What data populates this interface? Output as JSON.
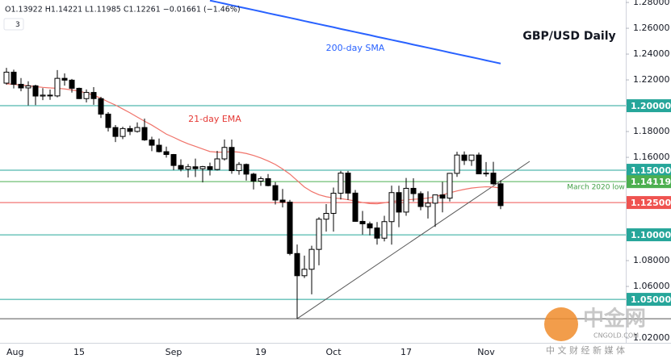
{
  "chart_data": {
    "type": "candlestick",
    "title": "GBP/USD Daily",
    "header": {
      "ohlc": "O1.13922 H1.14221 L1.11985 C1.12261 −0.01661 (−1.46%)",
      "indicator_count": "3"
    },
    "categories": [
      "Aug",
      null,
      null,
      null,
      null,
      null,
      null,
      null,
      null,
      null,
      "15",
      null,
      null,
      null,
      null,
      null,
      null,
      null,
      null,
      null,
      null,
      null,
      null,
      "Sep",
      null,
      null,
      null,
      null,
      null,
      null,
      null,
      null,
      null,
      null,
      null,
      "19",
      null,
      null,
      null,
      null,
      null,
      null,
      null,
      null,
      null,
      "Oct",
      null,
      null,
      null,
      null,
      null,
      null,
      null,
      null,
      null,
      "17",
      null,
      null,
      null,
      null,
      null,
      null,
      null,
      null,
      null,
      null,
      "Nov",
      null,
      null
    ],
    "open": [
      1.2175,
      1.226,
      1.2166,
      1.2138,
      1.2154,
      1.2075,
      1.2082,
      1.2076,
      1.2212,
      1.2198,
      1.2135,
      1.2055,
      1.2103,
      1.2055,
      1.1935,
      1.1831,
      1.1762,
      1.1823,
      1.1801,
      1.1831,
      1.1735,
      1.1694,
      1.1644,
      1.1622,
      1.1537,
      1.1509,
      1.1527,
      1.1512,
      1.1528,
      1.1506,
      1.1588,
      1.1677,
      1.1497,
      1.1545,
      1.147,
      1.1416,
      1.1435,
      1.1381,
      1.1269,
      1.1253,
      1.0855,
      1.0683,
      1.0733,
      1.0887,
      1.1121,
      1.1166,
      1.1322,
      1.1478,
      1.1323,
      1.1104,
      1.1085,
      1.1053,
      1.0974,
      1.1102,
      1.1327,
      1.1176,
      1.136,
      1.1319,
      1.1219,
      1.1245,
      1.1309,
      1.1284,
      1.1476,
      1.1618,
      1.1576,
      1.1618,
      1.1472,
      1.1478,
      1.1395
    ],
    "high": [
      1.2293,
      1.2279,
      1.2214,
      1.2189,
      1.2163,
      1.2136,
      1.2125,
      1.2276,
      1.225,
      1.2207,
      1.214,
      1.2126,
      1.2144,
      1.2069,
      1.195,
      1.185,
      1.1837,
      1.1846,
      1.1871,
      1.19,
      1.176,
      1.1746,
      1.1683,
      1.1626,
      1.1585,
      1.1548,
      1.159,
      1.1534,
      1.1559,
      1.165,
      1.1739,
      1.1738,
      1.1564,
      1.1552,
      1.148,
      1.1452,
      1.1471,
      1.1408,
      1.1355,
      1.1271,
      1.0925,
      1.0839,
      1.0915,
      1.1136,
      1.1238,
      1.1366,
      1.1495,
      1.1495,
      1.1347,
      1.1185,
      1.1102,
      1.1099,
      1.1147,
      1.1381,
      1.138,
      1.144,
      1.1438,
      1.1336,
      1.1336,
      1.1293,
      1.141,
      1.1479,
      1.1643,
      1.1646,
      1.1618,
      1.1637,
      1.1564,
      1.1565,
      1.1422
    ],
    "low": [
      1.2163,
      1.2134,
      1.2112,
      1.2003,
      1.2005,
      1.2043,
      1.2046,
      1.2065,
      1.2156,
      1.2102,
      1.2052,
      1.2025,
      1.2007,
      1.1905,
      1.18,
      1.1718,
      1.1741,
      1.1772,
      1.1792,
      1.1728,
      1.1648,
      1.1638,
      1.1598,
      1.1501,
      1.1492,
      1.1444,
      1.1448,
      1.1406,
      1.146,
      1.1498,
      1.1575,
      1.1473,
      1.1465,
      1.142,
      1.1351,
      1.1379,
      1.1375,
      1.1235,
      1.1212,
      1.0841,
      1.035,
      1.0665,
      1.0539,
      1.0764,
      1.1025,
      1.1025,
      1.1274,
      1.127,
      1.1101,
      1.1002,
      1.0996,
      1.0924,
      1.0949,
      1.0924,
      1.1059,
      1.1147,
      1.1258,
      1.119,
      1.1126,
      1.1061,
      1.1174,
      1.1258,
      1.1449,
      1.1541,
      1.1534,
      1.1469,
      1.1451,
      1.1386,
      1.1199
    ],
    "close": [
      1.226,
      1.2166,
      1.2138,
      1.2154,
      1.2075,
      1.2082,
      1.2076,
      1.2212,
      1.2198,
      1.2135,
      1.2055,
      1.2103,
      1.2055,
      1.1935,
      1.1831,
      1.1762,
      1.1823,
      1.1801,
      1.1831,
      1.1735,
      1.1694,
      1.1644,
      1.1622,
      1.1537,
      1.1509,
      1.1527,
      1.1512,
      1.1528,
      1.1506,
      1.1588,
      1.1677,
      1.1497,
      1.1545,
      1.147,
      1.1416,
      1.1435,
      1.1381,
      1.1269,
      1.1253,
      1.0855,
      1.0683,
      1.0733,
      1.0887,
      1.1121,
      1.1166,
      1.1322,
      1.1478,
      1.1323,
      1.1104,
      1.1085,
      1.1053,
      1.0974,
      1.1102,
      1.1327,
      1.1176,
      1.136,
      1.1319,
      1.1219,
      1.1245,
      1.1309,
      1.1284,
      1.1476,
      1.1618,
      1.1576,
      1.1618,
      1.1472,
      1.1478,
      1.1395,
      1.1226
    ],
    "series": [
      {
        "name": "200-day SMA",
        "color": "#2962ff",
        "values": [
          null,
          null,
          null,
          null,
          null,
          null,
          null,
          null,
          null,
          null,
          null,
          null,
          null,
          null,
          null,
          null,
          null,
          null,
          null,
          null,
          null,
          null,
          null,
          null,
          null,
          null,
          null,
          null,
          1.2815,
          1.2803,
          1.2791,
          1.2778,
          1.2766,
          1.2754,
          1.2742,
          1.273,
          1.2717,
          1.2705,
          1.2693,
          1.2681,
          1.2669,
          1.2656,
          1.2644,
          1.2632,
          1.262,
          1.2608,
          1.2595,
          1.2583,
          1.2571,
          1.2559,
          1.2547,
          1.2534,
          1.2522,
          1.251,
          1.2498,
          1.2486,
          1.2473,
          1.2461,
          1.2449,
          1.2437,
          1.2425,
          1.2412,
          1.24,
          1.2388,
          1.2376,
          1.2364,
          1.2351,
          1.2339,
          1.2327
        ]
      },
      {
        "name": "21-day EMA",
        "color": "#f0736a",
        "values": [
          1.217,
          1.2165,
          1.216,
          1.2155,
          1.2148,
          1.2142,
          1.2138,
          1.2135,
          1.213,
          1.2122,
          1.2113,
          1.2098,
          1.2082,
          1.2058,
          1.203,
          1.2005,
          1.1975,
          1.1945,
          1.1912,
          1.188,
          1.185,
          1.1815,
          1.178,
          1.1755,
          1.1728,
          1.1705,
          1.1685,
          1.1665,
          1.1645,
          1.164,
          1.164,
          1.1645,
          1.164,
          1.163,
          1.1615,
          1.1595,
          1.1572,
          1.1545,
          1.151,
          1.147,
          1.142,
          1.137,
          1.1335,
          1.131,
          1.1295,
          1.1285,
          1.128,
          1.1272,
          1.1262,
          1.125,
          1.1242,
          1.124,
          1.1248,
          1.1258,
          1.1265,
          1.127,
          1.1275,
          1.1278,
          1.1285,
          1.1295,
          1.131,
          1.1325,
          1.134,
          1.1352,
          1.1362,
          1.1368,
          1.1372,
          1.137,
          1.1362
        ]
      }
    ],
    "levels": [
      {
        "value": 1.2,
        "label": "1.20000",
        "color": "#26a69a"
      },
      {
        "value": 1.15,
        "label": "1.15000",
        "color": "#26a69a"
      },
      {
        "value": 1.14119,
        "label": "1.14119",
        "color": "#4caf50"
      },
      {
        "value": 1.125,
        "label": "1.12500",
        "color": "#ef5350"
      },
      {
        "value": 1.1,
        "label": "1.10000",
        "color": "#26a69a"
      },
      {
        "value": 1.05,
        "label": "1.05000",
        "color": "#26a69a"
      },
      {
        "value": 1.035,
        "color": "#555555"
      }
    ],
    "trendline": {
      "x": [
        40,
        72
      ],
      "y": [
        1.035,
        1.1569
      ],
      "color": "#555555"
    },
    "annotations": {
      "sma": "200-day SMA",
      "ema": "21-day EMA",
      "march_low": "March 2020 low"
    },
    "ylim": [
      1.0163,
      1.2819
    ],
    "yticks": [
      {
        "value": 1.28,
        "label": "1.28000"
      },
      {
        "value": 1.26,
        "label": "1.26000"
      },
      {
        "value": 1.24,
        "label": "1.24000"
      },
      {
        "value": 1.22,
        "label": "1.22000"
      },
      {
        "value": 1.18,
        "label": "1.18000"
      },
      {
        "value": 1.16,
        "label": "1.16000"
      },
      {
        "value": 1.08,
        "label": "1.08000"
      },
      {
        "value": 1.06,
        "label": "1.06000"
      },
      {
        "value": 1.02,
        "label": "1.02000"
      }
    ],
    "watermark": {
      "brand": "中金网",
      "site": "CNGOLD.COM",
      "tagline": "中 文 财 经 新 媒 体"
    }
  }
}
